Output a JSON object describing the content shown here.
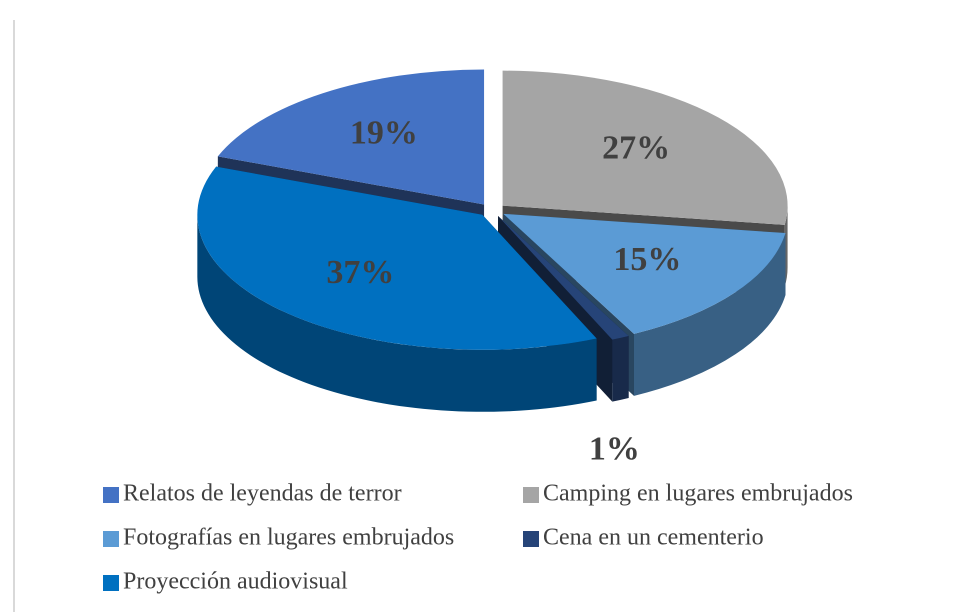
{
  "chart_data": {
    "type": "pie3d",
    "categories": [
      "Relatos de leyendas de terror",
      "Camping en lugares embrujados",
      "Fotografías en lugares embrujados",
      "Cena en un cementerio",
      "Proyección audiovisual"
    ],
    "values": [
      19,
      27,
      15,
      1,
      37
    ],
    "value_labels": [
      "19%",
      "27%",
      "15%",
      "1%",
      "37%"
    ],
    "colors": [
      "#4472c4",
      "#a5a5a5",
      "#5b9bd5",
      "#264478",
      "#0070c0"
    ],
    "legend": "bottom"
  }
}
